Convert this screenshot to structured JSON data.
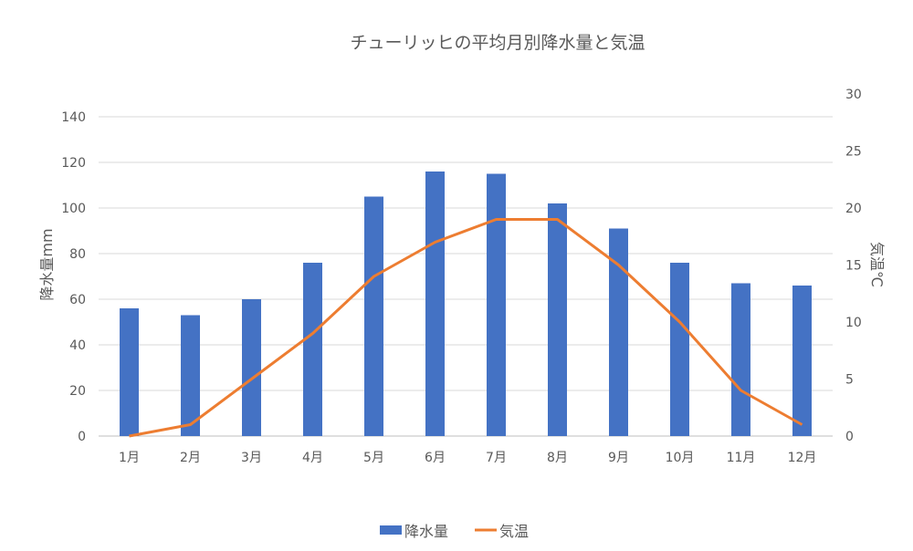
{
  "chart_data": {
    "type": "bar+line",
    "title": "チューリッヒの平均月別降水量と気温",
    "categories": [
      "1月",
      "2月",
      "3月",
      "4月",
      "5月",
      "6月",
      "7月",
      "8月",
      "9月",
      "10月",
      "11月",
      "12月"
    ],
    "series": [
      {
        "name": "降水量",
        "type": "bar",
        "axis": "left",
        "color": "#4472C4",
        "values": [
          56,
          53,
          60,
          76,
          105,
          116,
          115,
          102,
          91,
          76,
          67,
          66
        ]
      },
      {
        "name": "気温",
        "type": "line",
        "axis": "right",
        "color": "#ED7D31",
        "values": [
          0,
          1,
          5,
          9,
          14,
          17,
          19,
          19,
          15,
          10,
          4,
          1
        ]
      }
    ],
    "ylabel_left": "降水量mm",
    "ylabel_right": "気温℃",
    "ylim_left": [
      0,
      150
    ],
    "yticks_left": [
      "0",
      "20",
      "40",
      "60",
      "80",
      "100",
      "120",
      "140"
    ],
    "ylim_right": [
      0,
      30
    ],
    "yticks_right": [
      "0",
      "5",
      "10",
      "15",
      "20",
      "25",
      "30"
    ],
    "grid": true,
    "legend": "bottom"
  }
}
